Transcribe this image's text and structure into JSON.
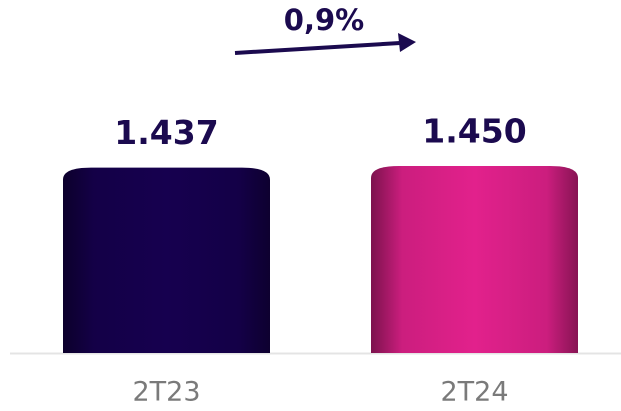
{
  "chart_data": {
    "type": "bar",
    "categories": [
      "2T23",
      "2T24"
    ],
    "values": [
      1437,
      1450
    ],
    "value_labels": [
      "1.437",
      "1.450"
    ],
    "colors": [
      "#16004f",
      "#e2218c"
    ],
    "annotation": "0,9%"
  }
}
